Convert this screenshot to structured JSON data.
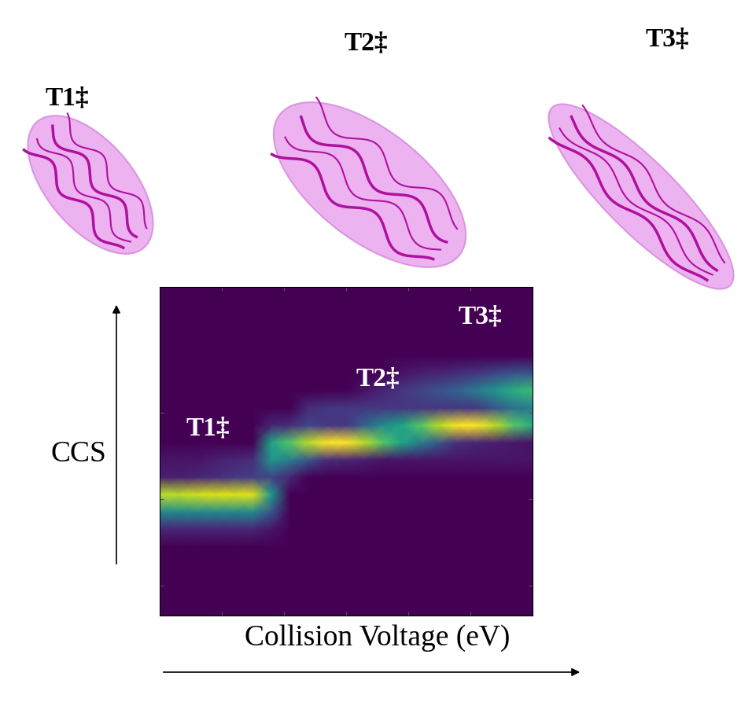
{
  "structures": [
    {
      "label": "T1‡"
    },
    {
      "label": "T2‡"
    },
    {
      "label": "T3‡"
    }
  ],
  "chart_data": {
    "type": "heatmap",
    "xlabel": "Collision Voltage (eV)",
    "ylabel": "CCS",
    "annotations": [
      "T1‡",
      "T2‡",
      "T3‡"
    ],
    "color": "viridis",
    "xlim": [
      0,
      6.0
    ],
    "ylim": [
      0,
      3.8
    ],
    "xticks": [
      1,
      2,
      3,
      4,
      5
    ],
    "yticks": [
      0.35,
      1.35,
      2.35
    ],
    "tick_labels": false,
    "x": [
      0,
      0.3,
      0.6,
      0.9,
      1.2,
      1.5,
      1.8,
      2.1,
      2.4,
      2.7,
      3.0,
      3.3,
      3.6,
      3.9,
      4.2,
      4.5,
      4.8,
      5.1,
      5.4,
      5.7,
      6.0
    ],
    "y": [
      0,
      0.2,
      0.4,
      0.6,
      0.8,
      1.0,
      1.2,
      1.4,
      1.6,
      1.8,
      2.0,
      2.2,
      2.4,
      2.6,
      2.8,
      3.0,
      3.2,
      3.4,
      3.6,
      3.8
    ],
    "cells": [
      [
        0,
        0,
        0,
        0,
        0,
        0,
        0,
        0,
        0,
        0,
        0,
        0,
        0,
        0,
        0,
        0,
        0,
        0,
        0,
        0,
        0
      ],
      [
        0,
        0,
        0,
        0,
        0,
        0,
        0,
        0,
        0,
        0,
        0,
        0,
        0,
        0,
        0,
        0,
        0,
        0,
        0,
        0,
        0
      ],
      [
        0,
        0,
        0,
        0,
        0,
        0,
        0,
        0,
        0,
        0,
        0,
        0,
        0,
        0,
        0,
        0,
        0,
        0,
        0,
        0,
        0
      ],
      [
        0,
        0,
        0,
        0,
        0,
        0,
        0,
        0,
        0,
        0,
        0,
        0,
        0,
        0,
        0,
        0,
        0,
        0,
        0,
        0,
        0
      ],
      [
        0,
        0,
        0,
        0,
        0,
        0,
        0,
        0,
        0,
        0,
        0,
        0,
        0,
        0,
        0,
        0,
        0,
        0,
        0,
        0,
        0
      ],
      [
        0.1,
        0.1,
        0.1,
        0.1,
        0.1,
        0.1,
        0.05,
        0,
        0,
        0,
        0,
        0,
        0,
        0,
        0,
        0,
        0,
        0,
        0,
        0,
        0
      ],
      [
        0.45,
        0.45,
        0.45,
        0.45,
        0.45,
        0.45,
        0.25,
        0,
        0,
        0,
        0,
        0,
        0,
        0,
        0,
        0,
        0,
        0,
        0,
        0,
        0
      ],
      [
        0.85,
        0.85,
        0.88,
        0.9,
        0.9,
        0.9,
        0.5,
        0,
        0,
        0,
        0,
        0,
        0,
        0,
        0,
        0,
        0,
        0,
        0,
        0,
        0
      ],
      [
        0.08,
        0.08,
        0.1,
        0.12,
        0.15,
        0.18,
        0.2,
        0.1,
        0,
        0,
        0,
        0,
        0,
        0,
        0,
        0,
        0,
        0,
        0,
        0,
        0
      ],
      [
        0.05,
        0.05,
        0.05,
        0.08,
        0.1,
        0.12,
        0.5,
        0.4,
        0.25,
        0.12,
        0.1,
        0.08,
        0.05,
        0.05,
        0.05,
        0.05,
        0.05,
        0.05,
        0.05,
        0.05,
        0.05
      ],
      [
        0,
        0,
        0,
        0,
        0,
        0,
        0.55,
        0.7,
        0.85,
        0.95,
        0.95,
        0.85,
        0.7,
        0.55,
        0.4,
        0.25,
        0.12,
        0.1,
        0.08,
        0.06,
        0.05
      ],
      [
        0,
        0,
        0,
        0,
        0,
        0,
        0.1,
        0.12,
        0.2,
        0.15,
        0.15,
        0.3,
        0.45,
        0.55,
        0.7,
        0.85,
        0.95,
        0.95,
        0.85,
        0.7,
        0.6
      ],
      [
        0,
        0,
        0,
        0,
        0,
        0,
        0,
        0,
        0.12,
        0.15,
        0.15,
        0.15,
        0.15,
        0.15,
        0.15,
        0.15,
        0.15,
        0.15,
        0.25,
        0.35,
        0.4
      ],
      [
        0,
        0,
        0,
        0,
        0,
        0,
        0,
        0,
        0,
        0,
        0,
        0.05,
        0.1,
        0.15,
        0.2,
        0.25,
        0.3,
        0.4,
        0.5,
        0.6,
        0.65
      ],
      [
        0,
        0,
        0,
        0,
        0,
        0,
        0,
        0,
        0,
        0,
        0,
        0,
        0,
        0.05,
        0.08,
        0.1,
        0.12,
        0.15,
        0.2,
        0.25,
        0.25
      ],
      [
        0,
        0,
        0,
        0,
        0,
        0,
        0,
        0,
        0,
        0,
        0,
        0,
        0,
        0,
        0,
        0,
        0,
        0,
        0,
        0,
        0
      ],
      [
        0,
        0,
        0,
        0,
        0,
        0,
        0,
        0,
        0,
        0,
        0,
        0,
        0,
        0,
        0,
        0,
        0,
        0,
        0,
        0,
        0
      ],
      [
        0,
        0,
        0,
        0,
        0,
        0,
        0,
        0,
        0,
        0,
        0,
        0,
        0,
        0,
        0,
        0,
        0,
        0,
        0,
        0,
        0
      ],
      [
        0,
        0,
        0,
        0,
        0,
        0,
        0,
        0,
        0,
        0,
        0,
        0,
        0,
        0,
        0,
        0,
        0,
        0,
        0,
        0,
        0
      ],
      [
        0,
        0,
        0,
        0,
        0,
        0,
        0,
        0,
        0,
        0,
        0,
        0,
        0,
        0,
        0,
        0,
        0,
        0,
        0,
        0,
        0
      ]
    ]
  }
}
